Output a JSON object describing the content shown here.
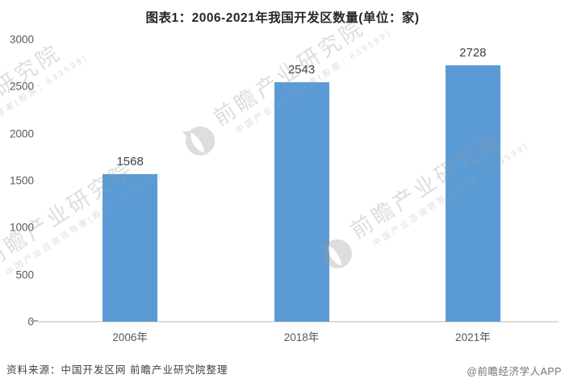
{
  "title": "图表1：2006-2021年我国开发区数量(单位：家)",
  "chart_data": {
    "type": "bar",
    "title": "图表1：2006-2021年我国开发区数量(单位：家)",
    "categories": [
      "2006年",
      "2018年",
      "2021年"
    ],
    "values": [
      1568,
      2543,
      2728
    ],
    "value_labels": [
      "1568",
      "2543",
      "2728"
    ],
    "xlabel": "",
    "ylabel": "",
    "ylim": [
      0,
      3000
    ],
    "y_ticks": [
      0,
      500,
      1000,
      1500,
      2000,
      2500,
      3000
    ],
    "grid": false,
    "legend": "none",
    "bar_color": "#5B9BD5"
  },
  "watermark": {
    "brand": "前瞻产业研究院",
    "subtitle": "中国产业咨询领导者(股票：839599)",
    "logo": "qianzhan-logo"
  },
  "footer": {
    "source": "资料来源：中国开发区网 前瞻产业研究院整理",
    "credit": "@前瞻经济学人APP"
  },
  "colors": {
    "bar": "#5B9BD5",
    "axis_line": "#DCDCDC",
    "tick_label": "#595959",
    "value_label": "#3F3F3F",
    "title": "#262626",
    "footer_source": "#3F3F3F",
    "footer_credit": "#737373",
    "watermark": "#D6D6D6"
  }
}
